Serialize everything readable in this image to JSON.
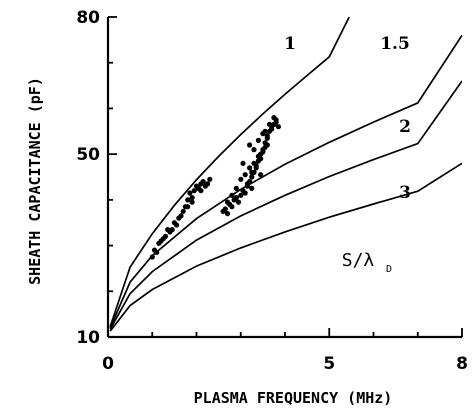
{
  "chart_data": {
    "type": "line",
    "xlabel": "PLASMA FREQUENCY (MHz)",
    "ylabel": "SHEATH CAPACITANCE (pF)",
    "xlim": [
      0,
      8
    ],
    "ylim": [
      10,
      80
    ],
    "x_ticks": [
      0,
      5,
      8
    ],
    "x_tick_labels": [
      "0",
      "5",
      "8"
    ],
    "y_ticks": [
      10,
      50,
      80
    ],
    "y_tick_labels": [
      "10",
      "50",
      "80"
    ],
    "grid": false,
    "annotation": {
      "main": "S/λ",
      "sub": "D"
    },
    "series": [
      {
        "name": "1",
        "x": [
          0.05,
          0.5,
          1.0,
          1.5,
          2.0,
          2.5,
          3.0,
          3.5,
          4.0,
          4.5,
          5.0,
          5.45
        ],
        "values": [
          12.3,
          25.3,
          32.6,
          38.8,
          44.4,
          49.5,
          54.3,
          58.8,
          63.1,
          67.2,
          71.3,
          80.0
        ]
      },
      {
        "name": "1.5",
        "x": [
          0.05,
          0.5,
          1.0,
          2.0,
          3.0,
          4.0,
          5.0,
          6.0,
          7.0,
          8.0
        ],
        "values": [
          12.0,
          22.0,
          27.8,
          35.9,
          42.3,
          47.8,
          52.6,
          57.0,
          61.2,
          76.0
        ]
      },
      {
        "name": "2",
        "x": [
          0.05,
          0.5,
          1.0,
          2.0,
          3.0,
          4.0,
          5.0,
          6.0,
          7.0,
          8.0
        ],
        "values": [
          11.7,
          19.5,
          24.3,
          31.2,
          36.5,
          41.0,
          45.1,
          48.8,
          52.3,
          66.0
        ]
      },
      {
        "name": "3",
        "x": [
          0.05,
          0.5,
          1.0,
          2.0,
          3.0,
          4.0,
          5.0,
          6.0,
          7.0,
          8.0
        ],
        "values": [
          11.3,
          16.9,
          20.4,
          25.5,
          29.5,
          33.0,
          36.2,
          39.1,
          41.9,
          48.0
        ]
      }
    ],
    "scatter": {
      "name": "",
      "x": [
        1.0,
        1.05,
        1.1,
        1.15,
        1.2,
        1.3,
        1.35,
        1.4,
        1.5,
        1.55,
        1.6,
        1.7,
        1.75,
        1.8,
        1.85,
        1.9,
        1.95,
        2.0,
        2.05,
        2.1,
        2.15,
        2.2,
        2.25,
        2.3,
        2.1,
        1.9,
        1.8,
        1.65,
        1.45,
        1.25,
        2.6,
        2.65,
        2.7,
        2.75,
        2.8,
        2.85,
        2.9,
        2.95,
        3.0,
        3.05,
        3.1,
        3.15,
        3.2,
        3.25,
        3.3,
        3.35,
        3.4,
        3.45,
        3.5,
        3.55,
        3.6,
        3.65,
        3.7,
        3.75,
        3.8,
        3.85,
        3.1,
        3.2,
        3.3,
        3.4,
        3.5,
        3.6,
        3.15,
        3.25,
        3.35,
        3.45,
        3.55,
        3.2,
        3.3,
        3.4,
        3.5,
        3.05,
        3.25,
        3.45,
        3.6,
        3.7,
        3.8,
        3.75,
        3.65,
        3.55,
        2.7,
        2.8,
        2.9,
        3.0
      ],
      "values": [
        27.5,
        29.0,
        28.5,
        30.5,
        31.0,
        32.0,
        33.5,
        33.0,
        35.0,
        34.5,
        36.0,
        37.5,
        38.5,
        40.0,
        41.5,
        40.5,
        42.0,
        43.0,
        42.5,
        43.5,
        44.0,
        43.0,
        43.5,
        44.5,
        42.0,
        39.5,
        38.5,
        36.5,
        33.5,
        31.5,
        37.5,
        38.0,
        37.0,
        39.0,
        38.5,
        40.0,
        40.5,
        39.5,
        41.0,
        42.0,
        41.5,
        43.0,
        44.0,
        45.0,
        46.0,
        47.0,
        48.5,
        50.0,
        51.0,
        52.5,
        54.0,
        55.0,
        56.0,
        56.5,
        57.0,
        56.0,
        45.5,
        47.0,
        48.0,
        49.5,
        50.5,
        52.0,
        43.5,
        46.0,
        47.5,
        49.0,
        51.5,
        52.0,
        51.0,
        53.0,
        54.5,
        48.0,
        42.5,
        45.5,
        53.5,
        55.5,
        57.5,
        58.0,
        56.5,
        55.0,
        39.5,
        41.0,
        42.5,
        44.5
      ]
    },
    "curve_labels": [
      "1",
      "1.5",
      "2",
      "3"
    ]
  }
}
